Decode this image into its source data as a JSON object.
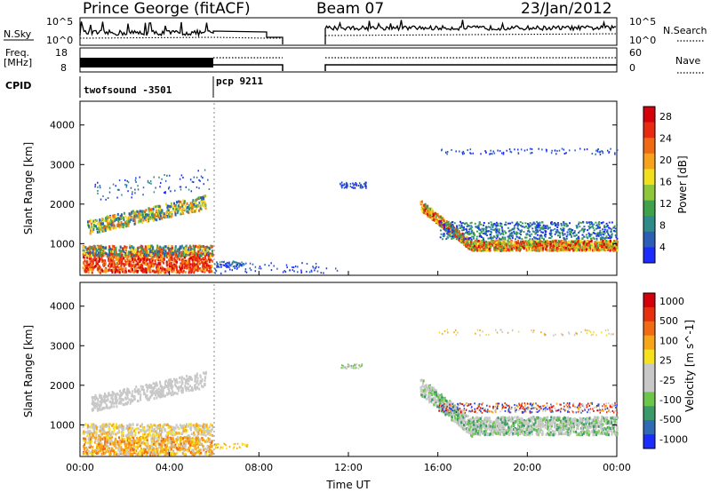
{
  "header": {
    "station": "Prince George (fitACF)",
    "beam": "Beam 07",
    "date": "23/Jan/2012"
  },
  "strip": {
    "nsky_label": "N.Sky",
    "nsearch_label": "N.Search",
    "nsky_ticks": [
      "10^5",
      "10^0"
    ],
    "nsky_right_ticks": [
      "10^5",
      "10^0"
    ],
    "freq_label_1": "Freq.",
    "freq_label_2": "[MHz]",
    "freq_ticks": [
      "18",
      "8"
    ],
    "nave_label": "Nave",
    "nave_ticks": [
      "60",
      "0"
    ],
    "cpid_label": "CPID",
    "cpid_entries": [
      "twofsound -3501",
      "pcp 9211"
    ]
  },
  "power_scale": {
    "label": "Power [dB]",
    "ticks": [
      "4",
      "8",
      "12",
      "16",
      "20",
      "24",
      "28"
    ],
    "colors": [
      "#1c2cff",
      "#2a5fb5",
      "#2f8a8a",
      "#3fa24a",
      "#8fc63a",
      "#f2e01f",
      "#f7a21a",
      "#f06a14",
      "#e82a10",
      "#d4000a"
    ]
  },
  "velocity_scale": {
    "label": "Velocity [m s^-1]",
    "ticks": [
      "1000",
      "500",
      "100",
      "25",
      "-25",
      "-100",
      "-500",
      "-1000"
    ],
    "colors": [
      "#1c2cff",
      "#2f6ab4",
      "#3a9a6a",
      "#6cc64a",
      "#c8c8c8",
      "#c8c8c8",
      "#f6e21c",
      "#f7a61a",
      "#f26a14",
      "#e8300f",
      "#d4000a"
    ]
  },
  "chart_data": [
    {
      "type": "heatmap",
      "name_printed": "",
      "ylabel": "Slant Range [km]",
      "yticks": [
        1000,
        2000,
        3000,
        4000
      ],
      "ylim": [
        200,
        4600
      ],
      "xlim": [
        "00:00",
        "24:00"
      ],
      "colorbar": "Power [dB]"
    },
    {
      "type": "heatmap",
      "ylabel": "Slant Range [km]",
      "yticks": [
        1000,
        2000,
        3000,
        4000
      ],
      "ylim": [
        200,
        4600
      ],
      "xlim": [
        "00:00",
        "24:00"
      ],
      "colorbar": "Velocity [m s^-1]"
    }
  ],
  "xaxis": {
    "ticks": [
      "00:00",
      "04:00",
      "08:00",
      "12:00",
      "16:00",
      "20:00",
      "00:00"
    ],
    "label": "Time UT"
  },
  "yaxis_label": "Slant Range [km]",
  "ytick_labels": [
    "1000",
    "2000",
    "3000",
    "4000"
  ]
}
